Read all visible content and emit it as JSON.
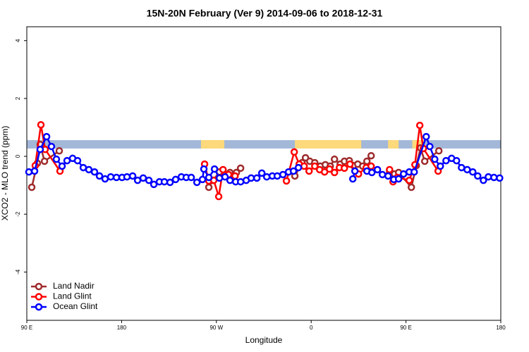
{
  "chart_data": {
    "type": "line",
    "title": "15N-20N February (Ver 9)   2014-09-06 to 2018-12-31",
    "x_label": "Longitude",
    "y_label": "XCO2 - MLO trend (ppm)",
    "xlim": [
      90,
      540
    ],
    "ylim": [
      -5.67,
      4.48
    ],
    "xticks": [
      {
        "value": 90,
        "label": "90 E"
      },
      180,
      {
        "value": 270,
        "label": "90 W"
      },
      {
        "value": 360,
        "label": "0"
      },
      {
        "value": 450,
        "label": "90 E"
      },
      {
        "value": 540,
        "label": "180"
      }
    ],
    "yticks": [
      -4,
      -2,
      0,
      2,
      4
    ],
    "legend": "bottom-left",
    "mask_band": {
      "ylim": [
        0.27,
        0.56
      ],
      "color": "#a3b8d9",
      "land_color": "#fcd97a",
      "land_x": [
        [
          255.4,
          277.5
        ],
        [
          344.5,
          407.5
        ],
        [
          433,
          443
        ],
        [
          456,
          468
        ]
      ]
    },
    "series": [
      {
        "name": "Land Nadir",
        "color": "#9e2a2b",
        "x": [
          94.7,
          100.0,
          102.7,
          106.8,
          120.8,
          null,
          262.8,
          266.8,
          272.9,
          282.9,
          289.0,
          293.0,
          null,
          344.5,
          351.3,
          354.6,
          358.7,
          363.4,
          368.7,
          373.4,
          378.1,
          382.1,
          387.5,
          391.5,
          396.2,
          400.2,
          404.2,
          408.9,
          412.9,
          416.9,
          null,
          434.4,
          439.1,
          443.0,
          455.1,
          459.8,
          463.8,
          467.8,
          481.2
        ],
        "values": [
          -1.07,
          -0.24,
          0.41,
          -0.17,
          0.19,
          null,
          -1.07,
          -0.83,
          -0.54,
          -0.56,
          -0.56,
          -0.41,
          null,
          -0.68,
          -0.22,
          -0.05,
          -0.17,
          -0.22,
          -0.34,
          -0.29,
          -0.34,
          -0.1,
          -0.27,
          -0.17,
          -0.15,
          -0.32,
          -0.27,
          -0.34,
          -0.17,
          0.02,
          null,
          -0.56,
          -0.61,
          -0.56,
          -1.07,
          -0.32,
          0.29,
          -0.17,
          0.19
        ]
      },
      {
        "name": "Land Glint",
        "color": "#ff0000",
        "x": [
          98.0,
          103.4,
          107.4,
          121.5,
          null,
          258.8,
          262.8,
          267.5,
          272.2,
          276.3,
          281.6,
          287.7,
          null,
          336.5,
          343.9,
          348.6,
          353.3,
          358.0,
          363.4,
          368.0,
          372.7,
          377.4,
          382.1,
          386.8,
          391.5,
          396.8,
          404.9,
          412.2,
          416.9,
          null,
          434.4,
          437.7,
          441.7,
          453.1,
          458.5,
          463.1,
          466.5,
          480.5
        ],
        "values": [
          -0.32,
          1.09,
          0.24,
          -0.51,
          null,
          -0.27,
          -0.85,
          -0.83,
          -1.39,
          -0.46,
          -0.63,
          -0.68,
          null,
          -0.85,
          0.15,
          -0.27,
          -0.34,
          -0.51,
          -0.34,
          -0.46,
          -0.54,
          -0.44,
          -0.56,
          -0.39,
          -0.41,
          -0.27,
          -0.61,
          -0.39,
          -0.34,
          null,
          -0.46,
          -0.88,
          -0.73,
          -0.83,
          -0.29,
          1.07,
          0.27,
          -0.51
        ]
      },
      {
        "name": "Ocean Glint",
        "color": "#0000ff",
        "x": [
          92.0,
          97.4,
          102.7,
          108.8,
          113.4,
          118.1,
          123.5,
          128.2,
          133.5,
          138.2,
          143.6,
          148.9,
          154.3,
          159.0,
          164.3,
          169.7,
          175.1,
          180.4,
          185.1,
          190.5,
          195.2,
          200.5,
          205.9,
          210.6,
          215.9,
          220.6,
          226.0,
          231.3,
          236.7,
          241.4,
          246.1,
          251.5,
          256.8,
          258.1,
          262.8,
          268.2,
          272.9,
          278.2,
          282.9,
          288.3,
          293.0,
          298.3,
          303.0,
          308.4,
          313.1,
          317.8,
          323.1,
          327.8,
          333.2,
          338.5,
          343.2,
          347.9,
          null,
          399.5,
          401.5,
          null,
          412.9,
          417.6,
          422.9,
          427.6,
          433.0,
          438.4,
          443.0,
          447.7,
          453.1,
          457.8,
          469.2,
          472.6,
          477.3,
          482.6,
          488.0,
          493.3,
          498.0,
          502.7,
          508.1,
          513.4,
          518.1,
          523.5,
          528.2,
          533.5,
          538.9
        ],
        "values": [
          -0.54,
          -0.51,
          0.24,
          0.68,
          0.34,
          -0.1,
          -0.34,
          -0.15,
          -0.07,
          -0.15,
          -0.39,
          -0.46,
          -0.54,
          -0.68,
          -0.78,
          -0.71,
          -0.73,
          -0.73,
          -0.71,
          -0.68,
          -0.83,
          -0.75,
          -0.83,
          -0.97,
          -0.88,
          -0.88,
          -0.9,
          -0.8,
          -0.71,
          -0.73,
          -0.73,
          -0.9,
          -0.8,
          -0.44,
          -0.73,
          -0.44,
          -0.75,
          -0.71,
          -0.83,
          -0.88,
          -0.88,
          -0.83,
          -0.75,
          -0.75,
          -0.58,
          -0.71,
          -0.68,
          -0.68,
          -0.63,
          -0.54,
          -0.51,
          -0.39,
          null,
          -0.78,
          -0.51,
          null,
          -0.51,
          -0.56,
          -0.46,
          -0.63,
          -0.68,
          -0.8,
          -0.78,
          -0.61,
          -0.54,
          -0.54,
          0.68,
          0.34,
          -0.1,
          -0.34,
          -0.15,
          -0.07,
          -0.15,
          -0.39,
          -0.46,
          -0.54,
          -0.68,
          -0.83,
          -0.71,
          -0.73,
          -0.75
        ]
      }
    ]
  }
}
